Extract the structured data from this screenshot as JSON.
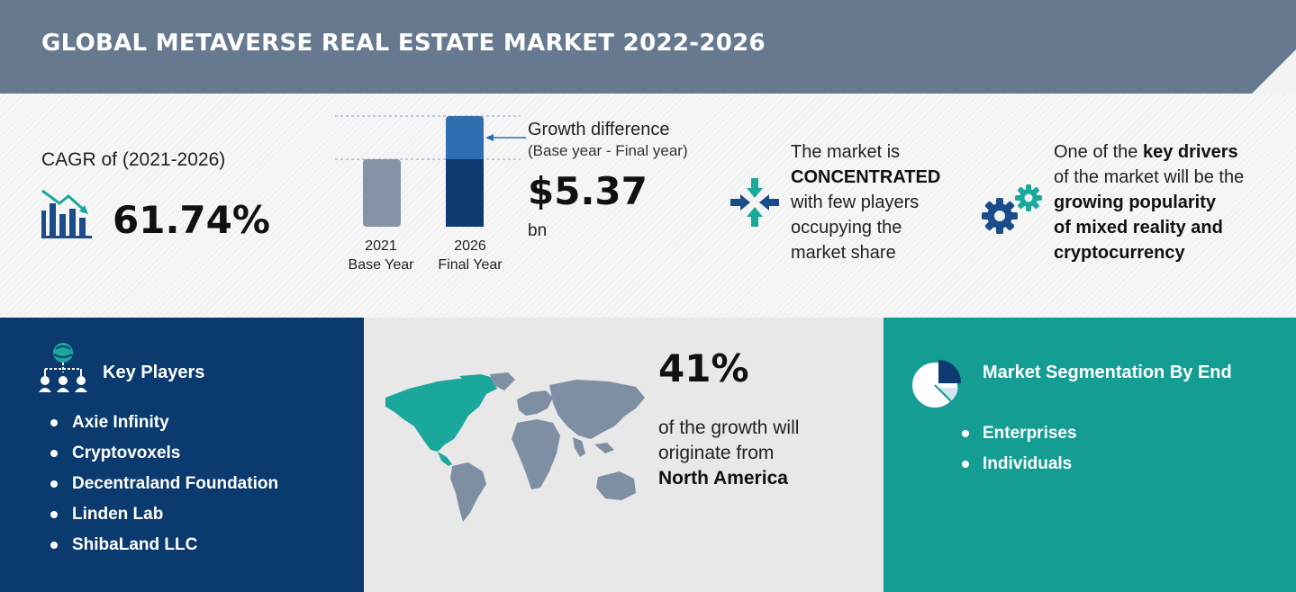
{
  "header": {
    "title": "GLOBAL METAVERSE REAL ESTATE MARKET 2022-2026"
  },
  "cagr": {
    "label": "CAGR of (2021-2026)",
    "value": "61.74%",
    "icon": "bar-chart-trend-icon"
  },
  "growth_chart": {
    "base": {
      "year": "2021",
      "label": "Base Year"
    },
    "final": {
      "year": "2026",
      "label": "Final Year"
    },
    "title": "Growth difference",
    "subtitle": "(Base year - Final year)",
    "value": "$5.37",
    "unit": "bn"
  },
  "concentration": {
    "line1": "The market is",
    "emphasis": "CONCENTRATED",
    "line3": "with few players",
    "line4": "occupying the",
    "line5": "market share",
    "icon": "arrows-converge-icon"
  },
  "drivers": {
    "lead": "One of the ",
    "key": "key drivers",
    "line2": "of the market will be the",
    "bold1": "growing popularity",
    "bold2": "of mixed reality and",
    "bold3": "cryptocurrency",
    "icon": "gears-icon"
  },
  "key_players": {
    "title": "Key Players",
    "items": [
      "Axie Infinity",
      "Cryptovoxels",
      "Decentraland Foundation",
      "Linden Lab",
      "ShibaLand LLC"
    ],
    "icon": "network-people-icon"
  },
  "region": {
    "percent": "41%",
    "line1": "of the growth will",
    "line2": "originate from",
    "region": "North America",
    "icon": "world-map-icon"
  },
  "segmentation": {
    "title": "Market Segmentation By End",
    "items": [
      "Enterprises",
      "Individuals"
    ],
    "icon": "pie-chart-icon"
  },
  "colors": {
    "banner": "#67798f",
    "navy": "#0a3a6e",
    "teal": "#139d93",
    "base_bar": "#8593a6",
    "final_bar_top": "#2f6fb0",
    "final_bar_bottom": "#0d3a70"
  }
}
